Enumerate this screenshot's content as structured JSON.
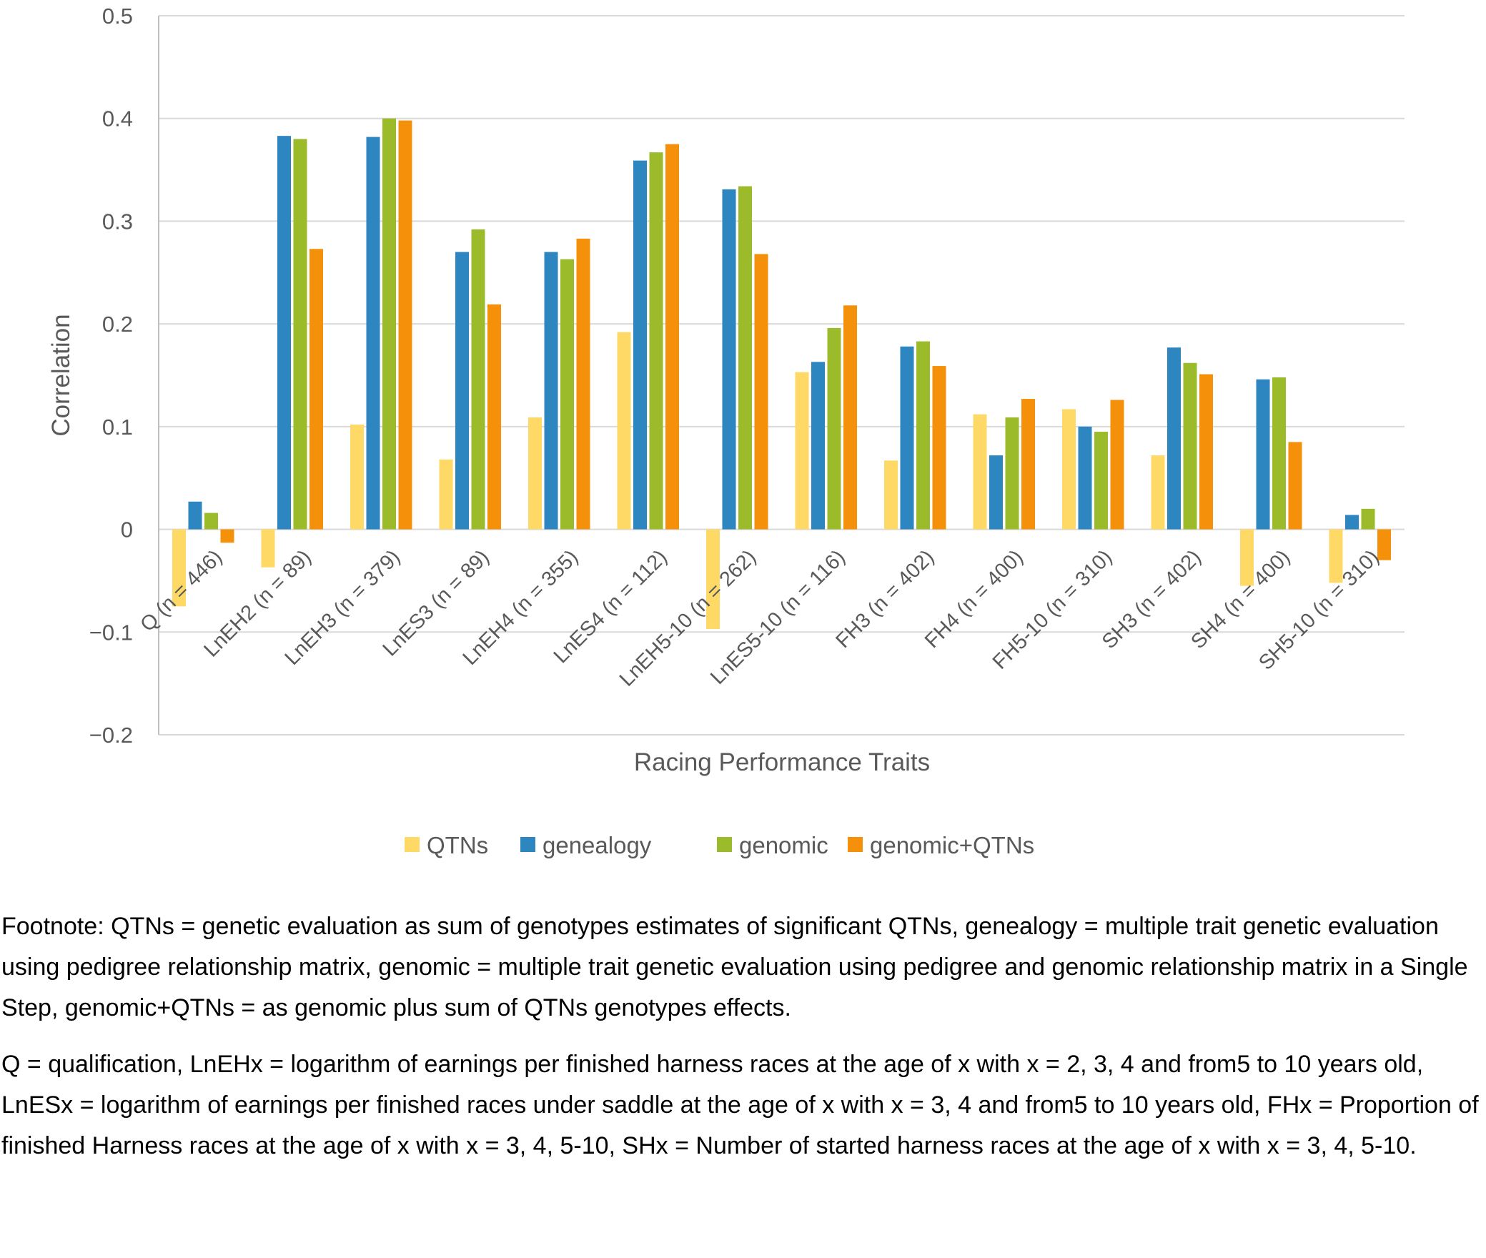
{
  "chart_data": {
    "type": "bar",
    "title": "",
    "xlabel": "Racing Performance Traits",
    "ylabel": "Correlation",
    "ylim": [
      -0.2,
      0.5
    ],
    "yticks": [
      0.5,
      0.4,
      0.3,
      0.2,
      0.1,
      0,
      -0.1,
      -0.2
    ],
    "ytick_labels": [
      "0.5",
      "0.4",
      "0.3",
      "0.2",
      "0.1",
      "0",
      "−0.1",
      "−0.2"
    ],
    "grid": true,
    "legend_position": "bottom",
    "categories": [
      "Q (n = 446)",
      "LnEH2 (n = 89)",
      "LnEH3 (n = 379)",
      "LnES3 (n = 89)",
      "LnEH4 (n = 355)",
      "LnES4 (n = 112)",
      "LnEH5-10 (n = 262)",
      "LnES5-10 (n = 116)",
      "FH3 (n = 402)",
      "FH4 (n = 400)",
      "FH5-10 (n = 310)",
      "SH3 (n = 402)",
      "SH4 (n = 400)",
      "SH5-10 (n = 310)"
    ],
    "series": [
      {
        "name": "QTNs",
        "color": "#FFD966",
        "values": [
          -0.075,
          -0.037,
          0.102,
          0.068,
          0.109,
          0.192,
          -0.097,
          0.153,
          0.067,
          0.112,
          0.117,
          0.072,
          -0.055,
          -0.052
        ]
      },
      {
        "name": "genealogy",
        "color": "#2E86C1",
        "values": [
          0.027,
          0.383,
          0.382,
          0.27,
          0.27,
          0.359,
          0.331,
          0.163,
          0.178,
          0.072,
          0.1,
          0.177,
          0.146,
          0.014
        ]
      },
      {
        "name": "genomic",
        "color": "#9BBB2B",
        "values": [
          0.016,
          0.38,
          0.4,
          0.292,
          0.263,
          0.367,
          0.334,
          0.196,
          0.183,
          0.109,
          0.095,
          0.162,
          0.148,
          0.02
        ]
      },
      {
        "name": "genomic+QTNs",
        "color": "#F5900A",
        "values": [
          -0.013,
          0.273,
          0.398,
          0.219,
          0.283,
          0.375,
          0.268,
          0.218,
          0.159,
          0.127,
          0.126,
          0.151,
          0.085,
          -0.03
        ]
      }
    ]
  },
  "footnotes": {
    "paragraph1": "Footnote: QTNs = genetic evaluation as sum of genotypes estimates of significant QTNs, genealogy = multiple trait genetic evaluation using pedigree relationship matrix, genomic = multiple trait genetic evaluation using pedigree and genomic relationship matrix in a Single Step, genomic+QTNs = as genomic plus sum of QTNs genotypes effects.",
    "paragraph2": "Q = qualification, LnEHx = logarithm of earnings per finished harness races at the age of  x with x = 2, 3, 4 and from5 to 10 years old, LnESx = logarithm of earnings per finished races under saddle at the age of x with x = 3, 4 and from5 to 10 years old, FHx = Proportion of finished Harness races at the age of  x with x = 3, 4, 5-10, SHx = Number of started harness races at the age of x with x = 3, 4, 5-10."
  }
}
